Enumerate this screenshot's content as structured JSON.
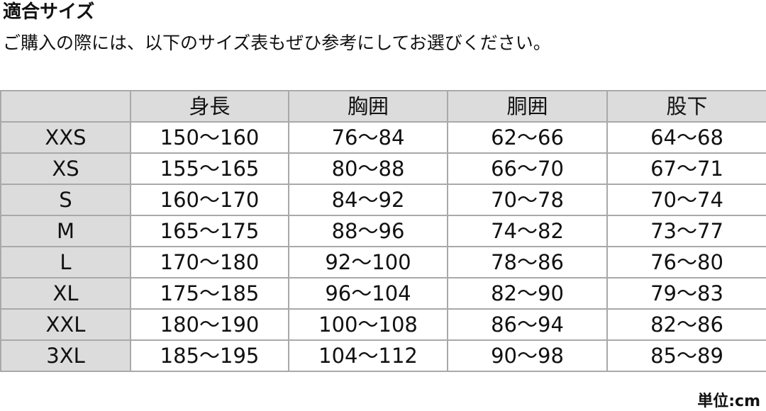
{
  "title": "適合サイズ",
  "subtitle": "ご購入の際には、以下のサイズ表もぜひ参考にしてお選びください。",
  "table": {
    "headers": [
      "",
      "身長",
      "胸囲",
      "胴囲",
      "股下"
    ],
    "rows": [
      [
        "XXS",
        "150〜160",
        "76〜84",
        "62〜66",
        "64〜68"
      ],
      [
        "XS",
        "155〜165",
        "80〜88",
        "66〜70",
        "67〜71"
      ],
      [
        "S",
        "160〜170",
        "84〜92",
        "70〜78",
        "70〜74"
      ],
      [
        "M",
        "165〜175",
        "88〜96",
        "74〜82",
        "73〜77"
      ],
      [
        "L",
        "170〜180",
        "92〜100",
        "78〜86",
        "76〜80"
      ],
      [
        "XL",
        "175〜185",
        "96〜104",
        "82〜90",
        "79〜83"
      ],
      [
        "XXL",
        "180〜190",
        "100〜108",
        "86〜94",
        "82〜86"
      ],
      [
        "3XL",
        "185〜195",
        "104〜112",
        "90〜98",
        "85〜89"
      ]
    ]
  },
  "unit": "単位:cm"
}
